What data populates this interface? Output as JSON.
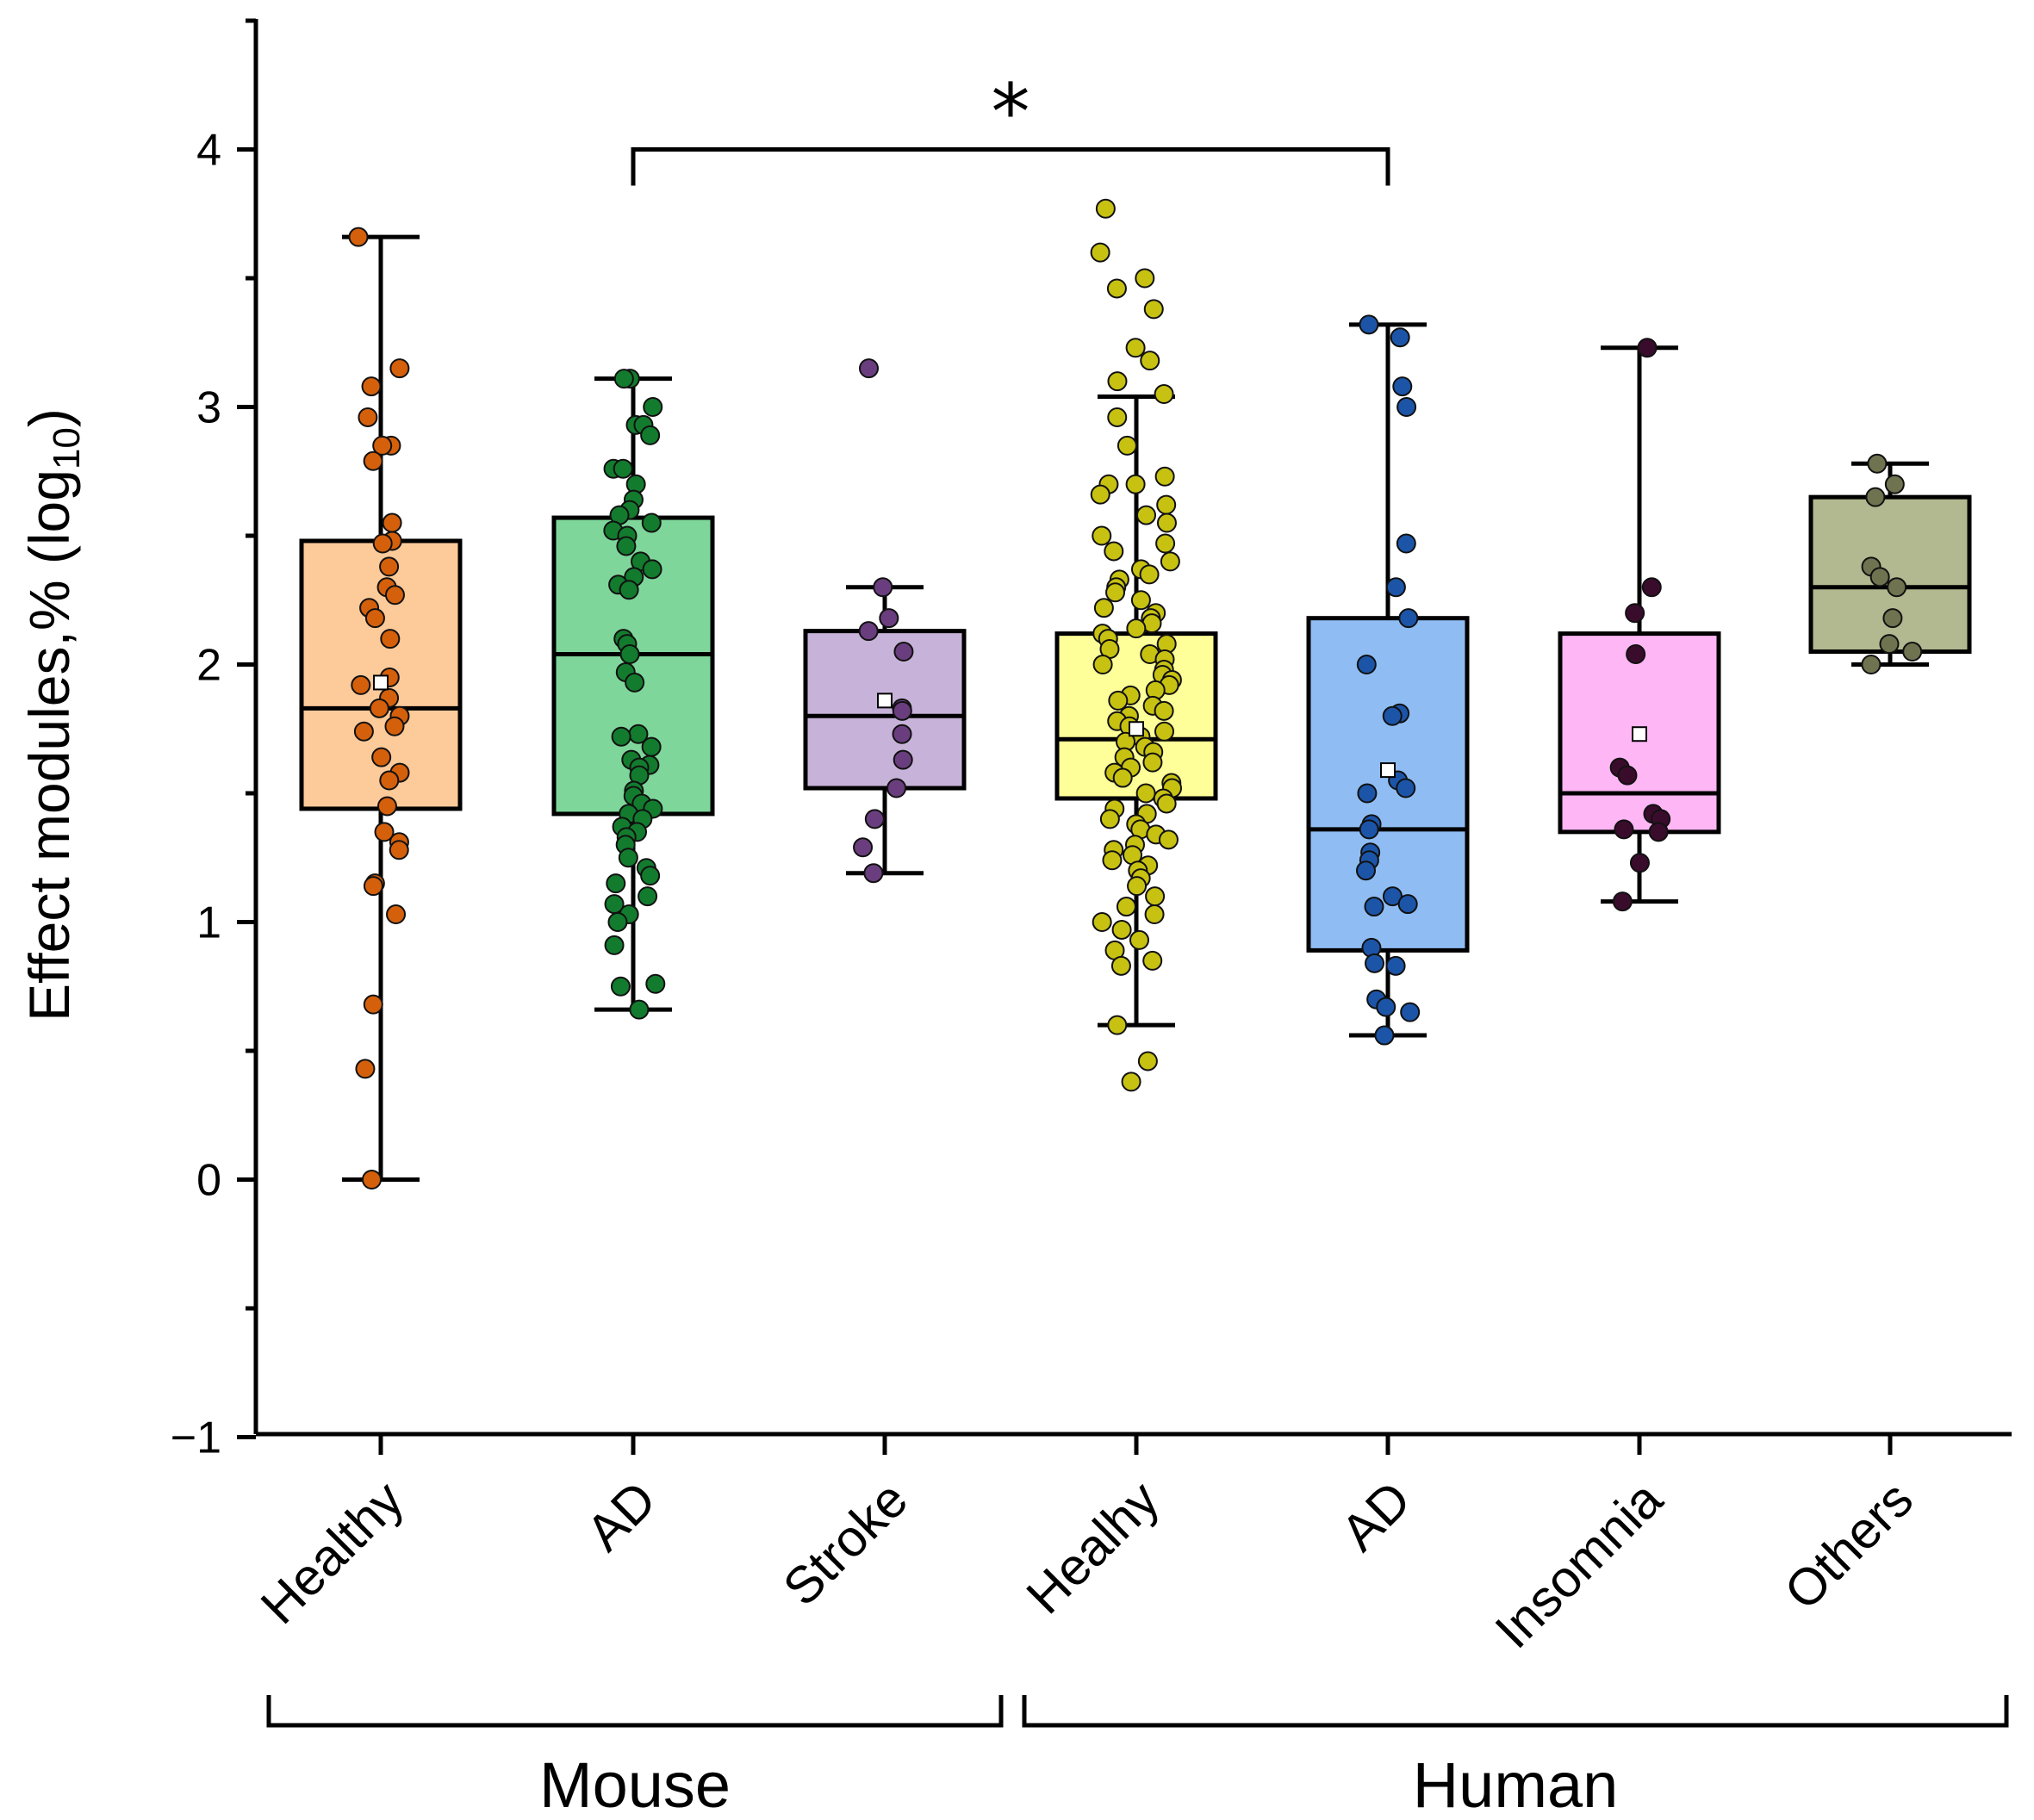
{
  "chart_data": {
    "type": "box",
    "ylabel": "Effect modules,% (log",
    "ylabel_subscript": "10",
    "ylabel_close": ")",
    "ylim": [
      -1,
      4.5
    ],
    "yticks": [
      -1,
      0,
      1,
      2,
      3,
      4
    ],
    "ytick_labels": [
      "−1",
      "0",
      "1",
      "2",
      "3",
      "4"
    ],
    "groups": [
      {
        "label": "Mouse",
        "categories": [
          0,
          1,
          2
        ]
      },
      {
        "label": "Human",
        "categories": [
          3,
          4,
          5,
          6
        ]
      }
    ],
    "significance": {
      "from": 1,
      "to": 4,
      "label": "*",
      "y": 4.04
    },
    "series": [
      {
        "name": "Healthy",
        "group": "Mouse",
        "fill": "#FDCA9A",
        "point_color": "#D4600C",
        "whisker_low": 0.0,
        "q1": 1.44,
        "median": 1.83,
        "q3": 2.48,
        "whisker_high": 3.66,
        "mean": 1.93,
        "points": [
          3.66,
          3.15,
          3.08,
          2.96,
          2.85,
          2.85,
          2.79,
          2.55,
          2.48,
          2.47,
          2.38,
          2.3,
          2.27,
          2.22,
          2.18,
          2.1,
          1.95,
          1.92,
          1.87,
          1.83,
          1.8,
          1.76,
          1.74,
          1.64,
          1.58,
          1.55,
          1.45,
          1.35,
          1.31,
          1.28,
          1.15,
          1.14,
          1.03,
          0.68,
          0.43,
          0.0
        ]
      },
      {
        "name": "AD",
        "group": "Mouse",
        "fill": "#7FD69A",
        "point_color": "#137B2E",
        "whisker_low": 0.66,
        "q1": 1.42,
        "median": 2.04,
        "q3": 2.57,
        "whisker_high": 3.11,
        "points": [
          3.11,
          3.11,
          3.0,
          2.93,
          2.93,
          2.89,
          2.76,
          2.76,
          2.7,
          2.64,
          2.6,
          2.58,
          2.55,
          2.52,
          2.5,
          2.46,
          2.4,
          2.37,
          2.34,
          2.31,
          2.29,
          2.1,
          2.08,
          2.04,
          1.97,
          1.93,
          1.73,
          1.72,
          1.68,
          1.63,
          1.61,
          1.6,
          1.57,
          1.51,
          1.49,
          1.46,
          1.44,
          1.42,
          1.4,
          1.37,
          1.35,
          1.33,
          1.3,
          1.25,
          1.21,
          1.18,
          1.15,
          1.1,
          1.07,
          1.03,
          1.0,
          0.91,
          0.76,
          0.75,
          0.66
        ]
      },
      {
        "name": "Stroke",
        "group": "Mouse",
        "fill": "#C7B3D9",
        "point_color": "#6A3E7E",
        "whisker_low": 1.19,
        "q1": 1.52,
        "median": 1.8,
        "q3": 2.13,
        "whisker_high": 2.3,
        "mean": 1.86,
        "points": [
          3.15,
          2.3,
          2.18,
          2.13,
          2.05,
          1.83,
          1.82,
          1.73,
          1.63,
          1.52,
          1.4,
          1.29,
          1.19
        ]
      },
      {
        "name": "Healhy",
        "group": "Human",
        "fill": "#FFFF99",
        "point_color": "#C7C112",
        "whisker_low": 0.6,
        "q1": 1.48,
        "median": 1.71,
        "q3": 2.12,
        "whisker_high": 3.04,
        "mean": 1.75,
        "points": [
          3.77,
          3.6,
          3.5,
          3.46,
          3.38,
          3.23,
          3.18,
          3.1,
          3.05,
          2.96,
          2.85,
          2.73,
          2.7,
          2.7,
          2.66,
          2.62,
          2.58,
          2.55,
          2.5,
          2.47,
          2.44,
          2.4,
          2.37,
          2.35,
          2.33,
          2.3,
          2.28,
          2.25,
          2.22,
          2.2,
          2.18,
          2.16,
          2.14,
          2.12,
          2.1,
          2.08,
          2.06,
          2.04,
          2.02,
          2.0,
          1.98,
          1.96,
          1.94,
          1.92,
          1.9,
          1.88,
          1.86,
          1.84,
          1.82,
          1.8,
          1.78,
          1.76,
          1.74,
          1.72,
          1.7,
          1.68,
          1.66,
          1.64,
          1.62,
          1.6,
          1.58,
          1.56,
          1.54,
          1.52,
          1.5,
          1.48,
          1.46,
          1.44,
          1.42,
          1.4,
          1.38,
          1.36,
          1.34,
          1.32,
          1.3,
          1.28,
          1.26,
          1.24,
          1.22,
          1.2,
          1.17,
          1.14,
          1.1,
          1.06,
          1.03,
          1.0,
          0.97,
          0.93,
          0.89,
          0.85,
          0.83,
          0.6,
          0.46,
          0.38
        ]
      },
      {
        "name": "AD",
        "group": "Human",
        "fill": "#8FBDF3",
        "point_color": "#1C55A8",
        "whisker_low": 0.56,
        "q1": 0.89,
        "median": 1.36,
        "q3": 2.18,
        "whisker_high": 3.32,
        "mean": 1.59,
        "points": [
          3.32,
          3.27,
          3.08,
          3.0,
          2.47,
          2.3,
          2.18,
          2.0,
          1.81,
          1.8,
          1.55,
          1.52,
          1.5,
          1.38,
          1.36,
          1.27,
          1.24,
          1.2,
          1.1,
          1.07,
          1.06,
          0.9,
          0.84,
          0.83,
          0.7,
          0.67,
          0.65,
          0.56
        ]
      },
      {
        "name": "Insomnia",
        "group": "Human",
        "fill": "#FFB6F5",
        "point_color": "#3A0C2C",
        "whisker_low": 1.08,
        "q1": 1.35,
        "median": 1.5,
        "q3": 2.12,
        "whisker_high": 3.23,
        "mean": 1.73,
        "points": [
          3.23,
          2.3,
          2.2,
          2.04,
          1.6,
          1.57,
          1.42,
          1.4,
          1.36,
          1.35,
          1.23,
          1.08
        ]
      },
      {
        "name": "Others",
        "group": "Human",
        "fill": "#B2B88F",
        "point_color": "#6F7350",
        "whisker_low": 2.0,
        "q1": 2.05,
        "median": 2.3,
        "q3": 2.65,
        "whisker_high": 2.78,
        "points": [
          2.78,
          2.7,
          2.65,
          2.38,
          2.34,
          2.3,
          2.18,
          2.08,
          2.05,
          2.0
        ]
      }
    ]
  }
}
